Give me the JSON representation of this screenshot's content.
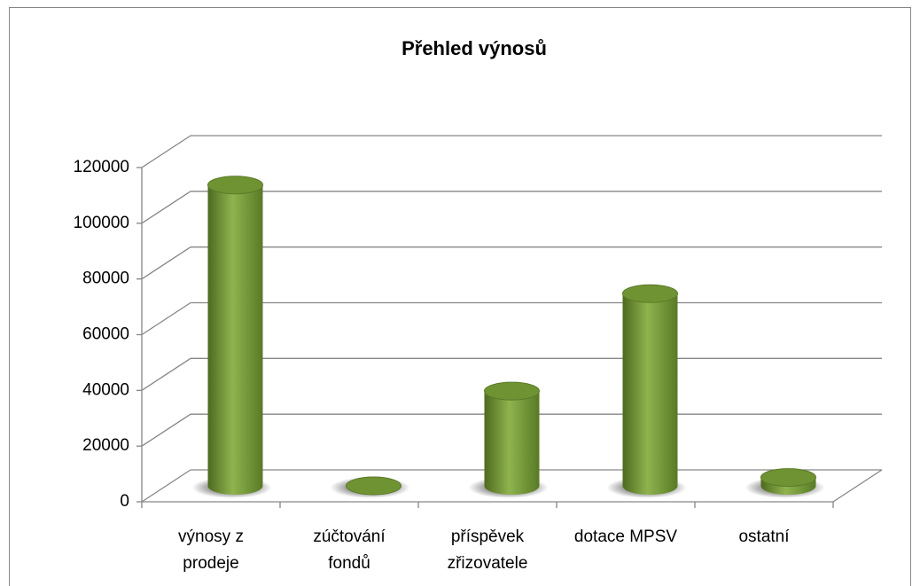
{
  "chart_data": {
    "type": "bar3d",
    "title": "Přehled výnosů",
    "categories": [
      "výnosy z prodeje",
      "zúčtování fondů",
      "příspěvek zřizovatele",
      "dotace MPSV",
      "ostatní"
    ],
    "values": [
      108000,
      0,
      34000,
      69000,
      3000
    ],
    "color": "#76983a",
    "ylim": [
      0,
      120000
    ],
    "yticks": [
      0,
      20000,
      40000,
      60000,
      80000,
      100000,
      120000
    ],
    "grid": true
  }
}
